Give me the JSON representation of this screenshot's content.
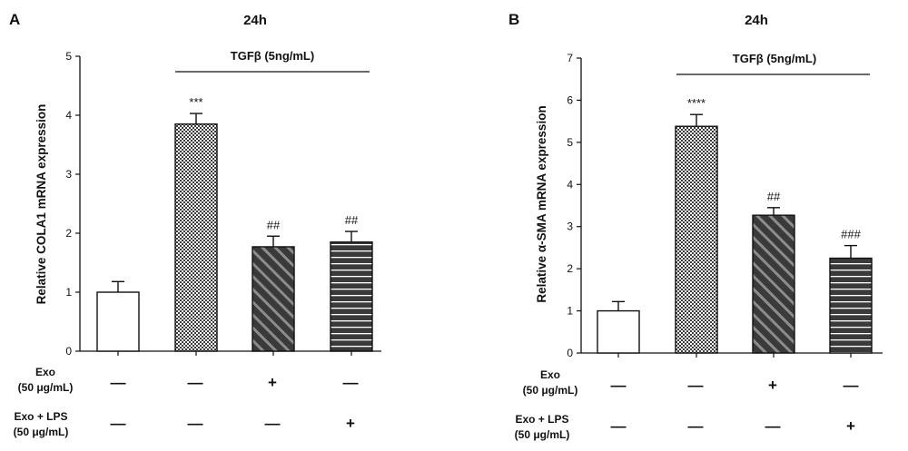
{
  "chart_data": [
    {
      "type": "bar",
      "panel": "A",
      "title": "24h",
      "ylabel": "Relative COLA1 mRNA expression",
      "ylim": [
        0,
        5
      ],
      "yticks": [
        "0",
        "1",
        "2",
        "3",
        "4",
        "5"
      ],
      "bracket_label": "TGFβ (5ng/mL)",
      "values": [
        1.0,
        3.85,
        1.77,
        1.85
      ],
      "errors": [
        0.18,
        0.18,
        0.18,
        0.18
      ],
      "significance": [
        "",
        "***",
        "##",
        "##"
      ],
      "patterns": [
        "white",
        "checker",
        "diagonal",
        "horizontal"
      ],
      "conditions": [
        {
          "label_lines": [
            "Exo",
            "(50 μg/mL)"
          ],
          "values": [
            "—",
            "—",
            "+",
            "—"
          ]
        },
        {
          "label_lines": [
            "Exo + LPS",
            "(50 μg/mL)"
          ],
          "values": [
            "—",
            "—",
            "—",
            "+"
          ]
        }
      ],
      "grid": false
    },
    {
      "type": "bar",
      "panel": "B",
      "title": "24h",
      "ylabel": "Relative α-SMA mRNA expression",
      "ylim": [
        0,
        7
      ],
      "yticks": [
        "0",
        "1",
        "2",
        "3",
        "4",
        "5",
        "6",
        "7"
      ],
      "bracket_label": "TGFβ (5ng/mL)",
      "values": [
        1.0,
        5.38,
        3.27,
        2.25
      ],
      "errors": [
        0.22,
        0.28,
        0.18,
        0.3
      ],
      "significance": [
        "",
        "****",
        "##",
        "###"
      ],
      "patterns": [
        "white",
        "checker",
        "diagonal",
        "horizontal"
      ],
      "conditions": [
        {
          "label_lines": [
            "Exo",
            "(50 μg/mL)"
          ],
          "values": [
            "—",
            "—",
            "+",
            "—"
          ]
        },
        {
          "label_lines": [
            "Exo + LPS",
            "(50 μg/mL)"
          ],
          "values": [
            "—",
            "—",
            "—",
            "+"
          ]
        }
      ],
      "grid": false
    }
  ],
  "colors": {
    "bar_dark": "#3a3a3a",
    "bar_stripe": "#8c8c8c",
    "bar_white": "#ffffff",
    "axis": "#111111"
  }
}
